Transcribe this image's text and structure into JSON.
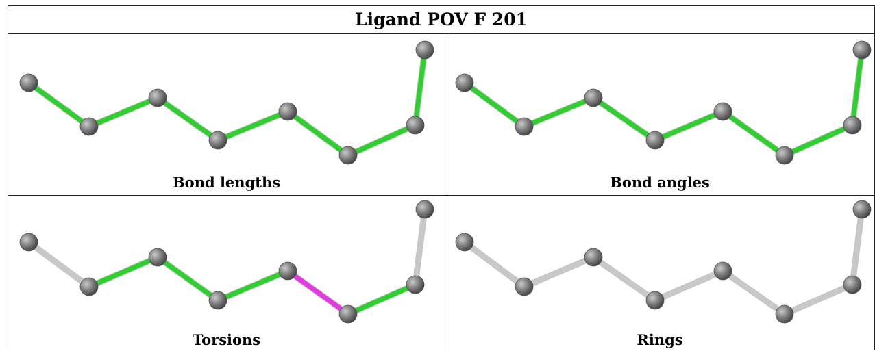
{
  "title": "Ligand POV F 201",
  "colors": {
    "green": "#2fcf2f",
    "magenta": "#e23be2",
    "gray_bond": "#c8c8c8",
    "atom": "#7a7a7a"
  },
  "panels": [
    {
      "caption": "Bond lengths",
      "bonds": [
        "green",
        "green",
        "green",
        "green",
        "green",
        "green",
        "green",
        "green"
      ]
    },
    {
      "caption": "Bond angles",
      "bonds": [
        "green",
        "green",
        "green",
        "green",
        "green",
        "green",
        "green",
        "green"
      ]
    },
    {
      "caption": "Torsions",
      "bonds": [
        "gray_bond",
        "green",
        "green",
        "green",
        "magenta",
        "green",
        "gray_bond",
        "gray_bond"
      ]
    },
    {
      "caption": "Rings",
      "bonds": [
        "gray_bond",
        "gray_bond",
        "gray_bond",
        "gray_bond",
        "gray_bond",
        "gray_bond",
        "gray_bond",
        "gray_bond"
      ]
    }
  ]
}
